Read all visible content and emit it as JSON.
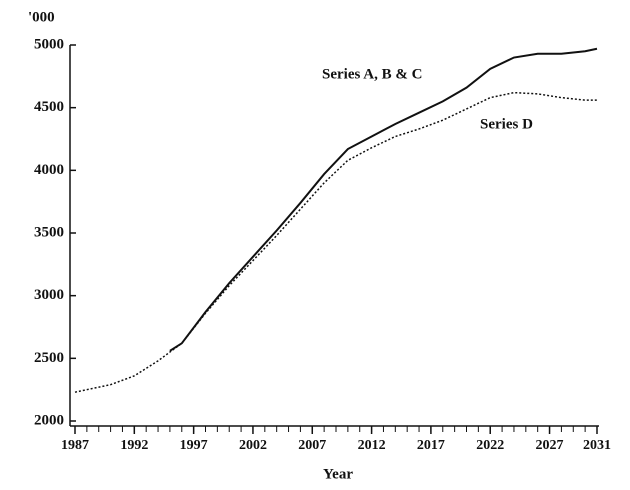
{
  "chart_data": {
    "type": "line",
    "y_label": "'000",
    "x_label": "Year",
    "x": [
      1987,
      1990,
      1992,
      1994,
      1995,
      1996,
      1998,
      2000,
      2002,
      2004,
      2006,
      2008,
      2010,
      2012,
      2014,
      2016,
      2018,
      2020,
      2022,
      2024,
      2026,
      2028,
      2030,
      2031
    ],
    "series": [
      {
        "name": "Series A, B & C",
        "color": "#111111",
        "style": "solid",
        "values": [
          null,
          null,
          null,
          null,
          2560,
          2620,
          2870,
          3100,
          3310,
          3520,
          3740,
          3970,
          4170,
          4270,
          4370,
          4460,
          4550,
          4660,
          4810,
          4900,
          4930,
          4930,
          4950,
          4970
        ]
      },
      {
        "name": "Series D",
        "color": "#111111",
        "style": "dotted",
        "values": [
          2230,
          2290,
          2360,
          2480,
          2550,
          2620,
          2860,
          3080,
          3280,
          3480,
          3690,
          3900,
          4080,
          4180,
          4270,
          4330,
          4400,
          4490,
          4580,
          4620,
          4610,
          4580,
          4560,
          4560
        ]
      }
    ],
    "xlim": [
      1987,
      2031
    ],
    "xticks": [
      1987,
      1992,
      1997,
      2002,
      2007,
      2012,
      2017,
      2022,
      2027,
      2031
    ],
    "ylim": [
      2000,
      5000
    ],
    "yticks": [
      2000,
      2500,
      3000,
      3500,
      4000,
      4500,
      5000
    ],
    "grid": false
  }
}
